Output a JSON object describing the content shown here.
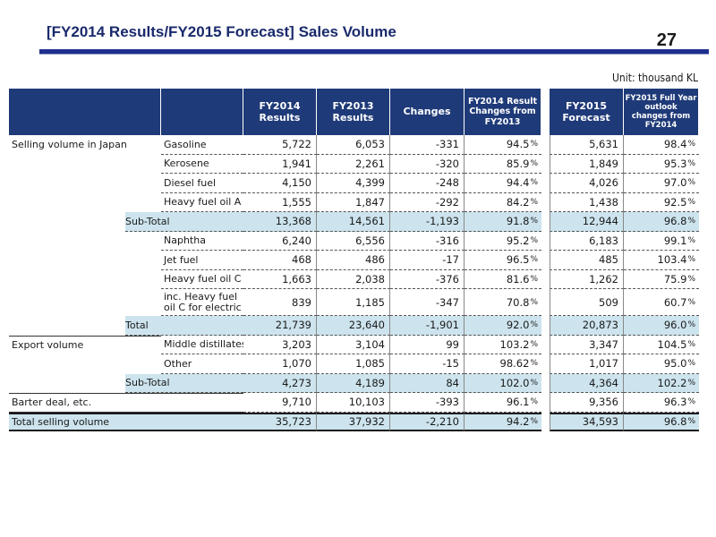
{
  "header": {
    "title": "[FY2014 Results/FY2015 Forecast] Sales Volume",
    "page_number": "27",
    "unit": "Unit: thousand KL"
  },
  "table": {
    "columns": {
      "fy2014": "FY2014\nResults",
      "fy2013": "FY2013\nResults",
      "changes": "Changes",
      "pct_change": "FY2014 Result\nChanges from\nFY2013",
      "fy2015": "FY2015\nForecast",
      "fy2015_pct": "FY2015 Full Year\noutlook\nchanges from\nFY2014"
    },
    "rows": [
      {
        "cat": "Selling volume in Japan",
        "item": "Gasoline",
        "fy2014": "5,722",
        "fy2013": "6,053",
        "chg": "-331",
        "pct": "94.5",
        "f": "5,631",
        "fpct": "98.4"
      },
      {
        "cat": "",
        "item": "Kerosene",
        "fy2014": "1,941",
        "fy2013": "2,261",
        "chg": "-320",
        "pct": "85.9",
        "f": "1,849",
        "fpct": "95.3"
      },
      {
        "cat": "",
        "item": "Diesel fuel",
        "fy2014": "4,150",
        "fy2013": "4,399",
        "chg": "-248",
        "pct": "94.4",
        "f": "4,026",
        "fpct": "97.0"
      },
      {
        "cat": "",
        "item": "Heavy fuel oil A",
        "fy2014": "1,555",
        "fy2013": "1,847",
        "chg": "-292",
        "pct": "84.2",
        "f": "1,438",
        "fpct": "92.5"
      },
      {
        "cat": "",
        "item": "Sub-Total",
        "fy2014": "13,368",
        "fy2013": "14,561",
        "chg": "-1,193",
        "pct": "91.8",
        "f": "12,944",
        "fpct": "96.8"
      },
      {
        "cat": "",
        "item": "Naphtha",
        "fy2014": "6,240",
        "fy2013": "6,556",
        "chg": "-316",
        "pct": "95.2",
        "f": "6,183",
        "fpct": "99.1"
      },
      {
        "cat": "",
        "item": "Jet fuel",
        "fy2014": "468",
        "fy2013": "486",
        "chg": "-17",
        "pct": "96.5",
        "f": "485",
        "fpct": "103.4"
      },
      {
        "cat": "",
        "item": "Heavy fuel oil C",
        "fy2014": "1,663",
        "fy2013": "2,038",
        "chg": "-376",
        "pct": "81.6",
        "f": "1,262",
        "fpct": "75.9"
      },
      {
        "cat": "",
        "item": "inc. Heavy fuel oil C for electric",
        "fy2014": "839",
        "fy2013": "1,185",
        "chg": "-347",
        "pct": "70.8",
        "f": "509",
        "fpct": "60.7"
      },
      {
        "cat": "",
        "item": "Total",
        "fy2014": "21,739",
        "fy2013": "23,640",
        "chg": "-1,901",
        "pct": "92.0",
        "f": "20,873",
        "fpct": "96.0"
      },
      {
        "cat": "Export volume",
        "item": "Middle distillates",
        "fy2014": "3,203",
        "fy2013": "3,104",
        "chg": "99",
        "pct": "103.2",
        "f": "3,347",
        "fpct": "104.5"
      },
      {
        "cat": "",
        "item": "Other",
        "fy2014": "1,070",
        "fy2013": "1,085",
        "chg": "-15",
        "pct": "98.62",
        "f": "1,017",
        "fpct": "95.0"
      },
      {
        "cat": "",
        "item": "Sub-Total",
        "fy2014": "4,273",
        "fy2013": "4,189",
        "chg": "84",
        "pct": "102.0",
        "f": "4,364",
        "fpct": "102.2"
      },
      {
        "cat": "Barter deal, etc.",
        "item": "",
        "fy2014": "9,710",
        "fy2013": "10,103",
        "chg": "-393",
        "pct": "96.1",
        "f": "9,356",
        "fpct": "96.3"
      },
      {
        "cat": "Total selling volume",
        "item": "",
        "fy2014": "35,723",
        "fy2013": "37,932",
        "chg": "-2,210",
        "pct": "94.2",
        "f": "34,593",
        "fpct": "96.8"
      }
    ],
    "pct_symbol": "%"
  }
}
